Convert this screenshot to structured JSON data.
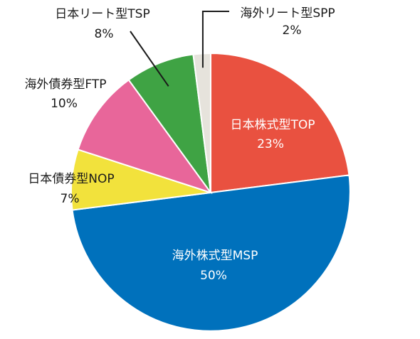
{
  "chart_data": {
    "type": "pie",
    "start_angle_deg": 0,
    "direction": "clockwise",
    "slices": [
      {
        "name": "日本株式型TOP",
        "value": 23,
        "label": "23%",
        "color": "#E95140"
      },
      {
        "name": "海外株式型MSP",
        "value": 50,
        "label": "50%",
        "color": "#0071BC"
      },
      {
        "name": "日本債券型NOP",
        "value": 7,
        "label": "7%",
        "color": "#F2E23C"
      },
      {
        "name": "海外債券型FTP",
        "value": 10,
        "label": "10%",
        "color": "#E8669A"
      },
      {
        "name": "日本リート型TSP",
        "value": 8,
        "label": "8%",
        "color": "#3FA344"
      },
      {
        "name": "海外リート型SPP",
        "value": 2,
        "label": "2%",
        "color": "#E6E3DC"
      }
    ]
  }
}
